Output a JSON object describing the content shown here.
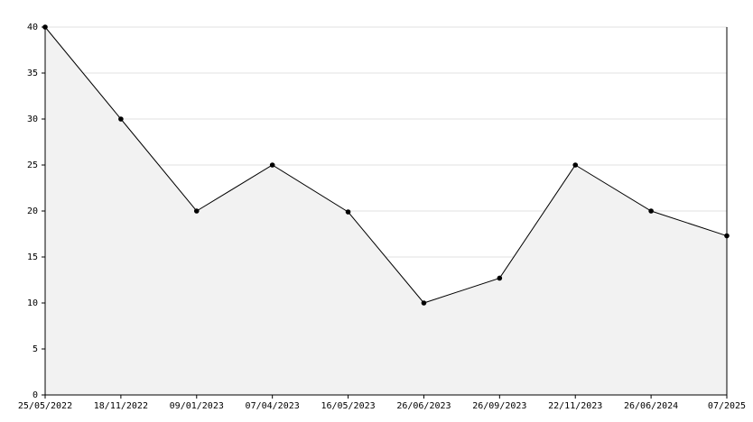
{
  "chart_data": {
    "type": "area",
    "categories": [
      "25/05/2022",
      "18/11/2022",
      "09/01/2023",
      "07/04/2023",
      "16/05/2023",
      "26/06/2023",
      "26/09/2023",
      "22/11/2023",
      "26/06/2024",
      "07/2025"
    ],
    "values": [
      40,
      30,
      20,
      25,
      19.9,
      10,
      12.7,
      25,
      20,
      17.3
    ],
    "color": "#000000",
    "fill": "#f2f2f2",
    "ylim": [
      0,
      40
    ],
    "yticks": [
      0,
      5,
      10,
      15,
      20,
      25,
      30,
      35,
      40
    ],
    "grid": true
  }
}
